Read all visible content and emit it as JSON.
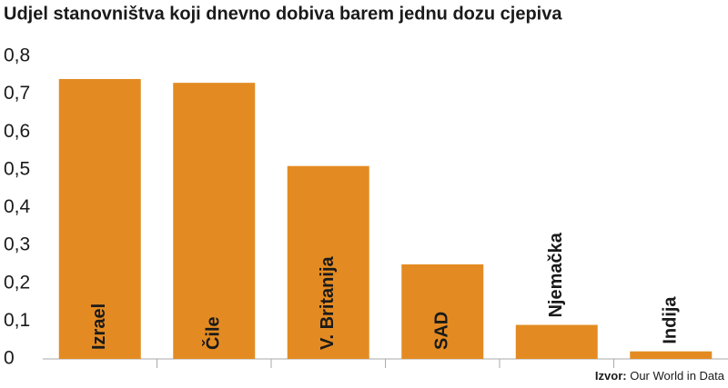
{
  "chart_data": {
    "type": "bar",
    "title": "Udjel stanovništva koji dnevno dobiva barem jednu dozu cjepiva",
    "categories": [
      "Izrael",
      "Čile",
      "V. Britanija",
      "SAD",
      "Njemačka",
      "Indija"
    ],
    "values": [
      0.74,
      0.73,
      0.51,
      0.25,
      0.09,
      0.02
    ],
    "color": "#e38b22",
    "ylim": [
      0,
      0.8
    ],
    "yticks": [
      0,
      {
        "value": 0.1,
        "label": "0,1"
      },
      {
        "value": 0.2,
        "label": "0,2"
      },
      {
        "value": 0.3,
        "label": "0,3"
      },
      {
        "value": 0.4,
        "label": "0,4"
      },
      {
        "value": 0.5,
        "label": "0,5"
      },
      {
        "value": 0.6,
        "label": "0,6"
      },
      {
        "value": 0.7,
        "label": "0,7"
      },
      {
        "value": 0.8,
        "label": "0,8"
      }
    ],
    "source_label": "Izvor:",
    "source": "Our World in Data"
  }
}
